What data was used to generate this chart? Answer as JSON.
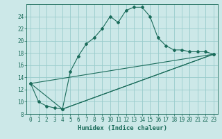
{
  "title": "",
  "xlabel": "Humidex (Indice chaleur)",
  "bg_color": "#cce8e8",
  "grid_color": "#99cccc",
  "line_color": "#1a6b5a",
  "xlim": [
    -0.5,
    23.5
  ],
  "ylim": [
    8,
    26
  ],
  "yticks": [
    8,
    10,
    12,
    14,
    16,
    18,
    20,
    22,
    24
  ],
  "xticks": [
    0,
    1,
    2,
    3,
    4,
    5,
    6,
    7,
    8,
    9,
    10,
    11,
    12,
    13,
    14,
    15,
    16,
    17,
    18,
    19,
    20,
    21,
    22,
    23
  ],
  "curve1_x": [
    0,
    1,
    2,
    3,
    4,
    5,
    6,
    7,
    8,
    9,
    10,
    11,
    12,
    13,
    14,
    15,
    16,
    17,
    18,
    19,
    20,
    21,
    22,
    23
  ],
  "curve1_y": [
    13.0,
    10.0,
    9.3,
    9.0,
    8.8,
    15.0,
    17.5,
    19.5,
    20.5,
    22.0,
    24.0,
    23.0,
    25.0,
    25.5,
    25.5,
    24.0,
    20.5,
    19.2,
    18.5,
    18.5,
    18.2,
    18.2,
    18.2,
    17.8
  ],
  "curve2_x": [
    0,
    4,
    23
  ],
  "curve2_y": [
    13.0,
    8.8,
    17.8
  ],
  "curve3_x": [
    4,
    23
  ],
  "curve3_y": [
    8.8,
    17.8
  ],
  "curve4_x": [
    0,
    23
  ],
  "curve4_y": [
    13.0,
    17.8
  ],
  "tick_fontsize": 5.5,
  "xlabel_fontsize": 6.5
}
